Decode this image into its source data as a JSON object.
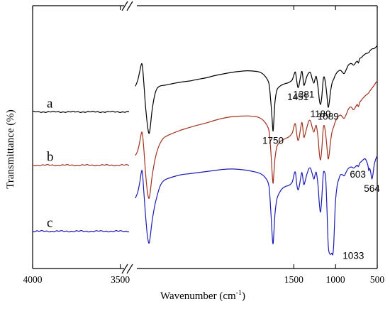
{
  "chart_data": {
    "type": "line",
    "title": "",
    "xlabel": "Wavenumber (cm",
    "xlabel_sup": "-1",
    "xlabel_end": ")",
    "ylabel": "Transmittance (%)",
    "x_break": true,
    "xlim_left": [
      4000,
      3450
    ],
    "xlim_right": [
      3450,
      500
    ],
    "ticks": [
      "4000",
      "3500",
      "1500",
      "1000",
      "500"
    ],
    "tick_values": [
      4000,
      3500,
      1500,
      1000,
      500
    ],
    "grid": false,
    "y_units": "arbitrary (offset curves)",
    "series": [
      {
        "name": "a",
        "color": "#000000",
        "left_level": 0.735,
        "points": [
          [
            3400,
            0.855
          ],
          [
            3370,
            0.885
          ],
          [
            3345,
            0.93
          ],
          [
            3320,
            0.96
          ],
          [
            3300,
            0.88
          ],
          [
            3280,
            0.77
          ],
          [
            3260,
            0.69
          ],
          [
            3240,
            0.636
          ],
          [
            3225,
            0.652
          ],
          [
            3200,
            0.74
          ],
          [
            3170,
            0.81
          ],
          [
            3140,
            0.845
          ],
          [
            3100,
            0.857
          ],
          [
            3050,
            0.86
          ],
          [
            2950,
            0.868
          ],
          [
            2850,
            0.875
          ],
          [
            2750,
            0.88
          ],
          [
            2650,
            0.888
          ],
          [
            2550,
            0.895
          ],
          [
            2450,
            0.905
          ],
          [
            2350,
            0.913
          ],
          [
            2250,
            0.92
          ],
          [
            2150,
            0.925
          ],
          [
            2050,
            0.928
          ],
          [
            1950,
            0.925
          ],
          [
            1900,
            0.92
          ],
          [
            1850,
            0.905
          ],
          [
            1800,
            0.87
          ],
          [
            1778,
            0.79
          ],
          [
            1760,
            0.7
          ],
          [
            1750,
            0.645
          ],
          [
            1740,
            0.69
          ],
          [
            1725,
            0.785
          ],
          [
            1700,
            0.84
          ],
          [
            1650,
            0.86
          ],
          [
            1600,
            0.868
          ],
          [
            1560,
            0.873
          ],
          [
            1520,
            0.885
          ],
          [
            1495,
            0.913
          ],
          [
            1480,
            0.92
          ],
          [
            1465,
            0.88
          ],
          [
            1451,
            0.85
          ],
          [
            1438,
            0.86
          ],
          [
            1420,
            0.9
          ],
          [
            1405,
            0.925
          ],
          [
            1395,
            0.91
          ],
          [
            1381,
            0.862
          ],
          [
            1368,
            0.868
          ],
          [
            1345,
            0.9
          ],
          [
            1320,
            0.918
          ],
          [
            1300,
            0.918
          ],
          [
            1280,
            0.89
          ],
          [
            1260,
            0.87
          ],
          [
            1245,
            0.89
          ],
          [
            1230,
            0.9
          ],
          [
            1210,
            0.85
          ],
          [
            1195,
            0.795
          ],
          [
            1180,
            0.77
          ],
          [
            1165,
            0.805
          ],
          [
            1148,
            0.885
          ],
          [
            1135,
            0.898
          ],
          [
            1120,
            0.868
          ],
          [
            1105,
            0.82
          ],
          [
            1089,
            0.758
          ],
          [
            1075,
            0.78
          ],
          [
            1060,
            0.83
          ],
          [
            1040,
            0.873
          ],
          [
            1020,
            0.89
          ],
          [
            1000,
            0.91
          ],
          [
            970,
            0.925
          ],
          [
            940,
            0.93
          ],
          [
            915,
            0.92
          ],
          [
            895,
            0.915
          ],
          [
            870,
            0.935
          ],
          [
            845,
            0.955
          ],
          [
            820,
            0.962
          ],
          [
            800,
            0.96
          ],
          [
            790,
            0.955
          ],
          [
            775,
            0.957
          ],
          [
            755,
            0.968
          ],
          [
            740,
            0.973
          ],
          [
            725,
            0.965
          ],
          [
            710,
            0.985
          ],
          [
            690,
            0.99
          ],
          [
            670,
            0.998
          ],
          [
            640,
            1.008
          ],
          [
            620,
            1.01
          ],
          [
            600,
            1.013
          ],
          [
            590,
            1.02
          ],
          [
            565,
            1.03
          ],
          [
            540,
            1.032
          ],
          [
            520,
            1.037
          ],
          [
            500,
            1.047
          ]
        ],
        "labels": [
          {
            "text": "1750",
            "x": 1750,
            "y": 0.645,
            "anchor": "below"
          },
          {
            "text": "1451",
            "x": 1451,
            "y": 0.85,
            "anchor": "below"
          },
          {
            "text": "1381",
            "x": 1381,
            "y": 0.862,
            "anchor": "below"
          },
          {
            "text": "1180",
            "x": 1180,
            "y": 0.77,
            "anchor": "below"
          },
          {
            "text": "1089",
            "x": 1089,
            "y": 0.758,
            "anchor": "below"
          }
        ]
      },
      {
        "name": "b",
        "color": "#a0321e",
        "left_level": 0.485,
        "points": [
          [
            3400,
            0.53
          ],
          [
            3370,
            0.555
          ],
          [
            3345,
            0.6
          ],
          [
            3320,
            0.64
          ],
          [
            3300,
            0.57
          ],
          [
            3280,
            0.46
          ],
          [
            3260,
            0.375
          ],
          [
            3240,
            0.33
          ],
          [
            3225,
            0.35
          ],
          [
            3200,
            0.43
          ],
          [
            3170,
            0.5
          ],
          [
            3140,
            0.55
          ],
          [
            3100,
            0.59
          ],
          [
            3050,
            0.616
          ],
          [
            2950,
            0.635
          ],
          [
            2850,
            0.65
          ],
          [
            2750,
            0.662
          ],
          [
            2650,
            0.673
          ],
          [
            2550,
            0.683
          ],
          [
            2450,
            0.695
          ],
          [
            2350,
            0.705
          ],
          [
            2250,
            0.712
          ],
          [
            2150,
            0.715
          ],
          [
            2050,
            0.716
          ],
          [
            1950,
            0.712
          ],
          [
            1900,
            0.705
          ],
          [
            1850,
            0.688
          ],
          [
            1800,
            0.65
          ],
          [
            1778,
            0.56
          ],
          [
            1760,
            0.45
          ],
          [
            1750,
            0.4
          ],
          [
            1740,
            0.44
          ],
          [
            1725,
            0.52
          ],
          [
            1700,
            0.575
          ],
          [
            1650,
            0.6
          ],
          [
            1600,
            0.61
          ],
          [
            1560,
            0.618
          ],
          [
            1520,
            0.635
          ],
          [
            1495,
            0.672
          ],
          [
            1480,
            0.677
          ],
          [
            1465,
            0.63
          ],
          [
            1451,
            0.602
          ],
          [
            1438,
            0.612
          ],
          [
            1420,
            0.655
          ],
          [
            1405,
            0.685
          ],
          [
            1395,
            0.67
          ],
          [
            1381,
            0.618
          ],
          [
            1368,
            0.625
          ],
          [
            1345,
            0.66
          ],
          [
            1320,
            0.692
          ],
          [
            1300,
            0.692
          ],
          [
            1280,
            0.662
          ],
          [
            1260,
            0.64
          ],
          [
            1245,
            0.66
          ],
          [
            1230,
            0.67
          ],
          [
            1210,
            0.615
          ],
          [
            1195,
            0.545
          ],
          [
            1180,
            0.51
          ],
          [
            1165,
            0.56
          ],
          [
            1148,
            0.655
          ],
          [
            1135,
            0.67
          ],
          [
            1120,
            0.635
          ],
          [
            1105,
            0.58
          ],
          [
            1089,
            0.515
          ],
          [
            1075,
            0.54
          ],
          [
            1060,
            0.595
          ],
          [
            1040,
            0.645
          ],
          [
            1020,
            0.667
          ],
          [
            1000,
            0.692
          ],
          [
            970,
            0.712
          ],
          [
            940,
            0.72
          ],
          [
            915,
            0.71
          ],
          [
            895,
            0.705
          ],
          [
            870,
            0.725
          ],
          [
            845,
            0.748
          ],
          [
            820,
            0.758
          ],
          [
            800,
            0.752
          ],
          [
            790,
            0.745
          ],
          [
            775,
            0.748
          ],
          [
            755,
            0.762
          ],
          [
            740,
            0.77
          ],
          [
            725,
            0.76
          ],
          [
            710,
            0.78
          ],
          [
            690,
            0.79
          ],
          [
            670,
            0.8
          ],
          [
            640,
            0.812
          ],
          [
            620,
            0.818
          ],
          [
            600,
            0.825
          ],
          [
            590,
            0.832
          ],
          [
            565,
            0.845
          ],
          [
            540,
            0.858
          ],
          [
            520,
            0.87
          ],
          [
            500,
            0.88
          ]
        ],
        "labels": []
      },
      {
        "name": "c",
        "color": "#1c1cb4",
        "left_level": 0.175,
        "points": [
          [
            3400,
            0.33
          ],
          [
            3370,
            0.36
          ],
          [
            3345,
            0.41
          ],
          [
            3320,
            0.46
          ],
          [
            3300,
            0.37
          ],
          [
            3280,
            0.26
          ],
          [
            3260,
            0.17
          ],
          [
            3240,
            0.12
          ],
          [
            3225,
            0.14
          ],
          [
            3200,
            0.22
          ],
          [
            3170,
            0.29
          ],
          [
            3140,
            0.34
          ],
          [
            3100,
            0.39
          ],
          [
            3050,
            0.415
          ],
          [
            2950,
            0.43
          ],
          [
            2850,
            0.44
          ],
          [
            2750,
            0.445
          ],
          [
            2650,
            0.45
          ],
          [
            2550,
            0.455
          ],
          [
            2450,
            0.46
          ],
          [
            2350,
            0.465
          ],
          [
            2250,
            0.467
          ],
          [
            2150,
            0.465
          ],
          [
            2050,
            0.46
          ],
          [
            1950,
            0.452
          ],
          [
            1900,
            0.445
          ],
          [
            1850,
            0.43
          ],
          [
            1800,
            0.39
          ],
          [
            1778,
            0.28
          ],
          [
            1760,
            0.16
          ],
          [
            1750,
            0.115
          ],
          [
            1740,
            0.16
          ],
          [
            1725,
            0.26
          ],
          [
            1700,
            0.33
          ],
          [
            1650,
            0.37
          ],
          [
            1600,
            0.385
          ],
          [
            1560,
            0.39
          ],
          [
            1520,
            0.405
          ],
          [
            1495,
            0.445
          ],
          [
            1480,
            0.45
          ],
          [
            1465,
            0.395
          ],
          [
            1451,
            0.37
          ],
          [
            1438,
            0.38
          ],
          [
            1420,
            0.42
          ],
          [
            1405,
            0.45
          ],
          [
            1395,
            0.435
          ],
          [
            1381,
            0.395
          ],
          [
            1368,
            0.405
          ],
          [
            1345,
            0.44
          ],
          [
            1320,
            0.468
          ],
          [
            1300,
            0.47
          ],
          [
            1280,
            0.445
          ],
          [
            1260,
            0.42
          ],
          [
            1245,
            0.44
          ],
          [
            1230,
            0.45
          ],
          [
            1210,
            0.39
          ],
          [
            1195,
            0.31
          ],
          [
            1180,
            0.265
          ],
          [
            1165,
            0.33
          ],
          [
            1148,
            0.44
          ],
          [
            1135,
            0.455
          ],
          [
            1120,
            0.43
          ],
          [
            1110,
            0.36
          ],
          [
            1100,
            0.25
          ],
          [
            1090,
            0.13
          ],
          [
            1080,
            0.08
          ],
          [
            1060,
            0.066
          ],
          [
            1045,
            0.072
          ],
          [
            1033,
            0.065
          ],
          [
            1022,
            0.11
          ],
          [
            1010,
            0.23
          ],
          [
            1000,
            0.32
          ],
          [
            980,
            0.39
          ],
          [
            960,
            0.42
          ],
          [
            940,
            0.44
          ],
          [
            915,
            0.44
          ],
          [
            895,
            0.435
          ],
          [
            870,
            0.455
          ],
          [
            845,
            0.47
          ],
          [
            820,
            0.476
          ],
          [
            800,
            0.475
          ],
          [
            790,
            0.472
          ],
          [
            775,
            0.473
          ],
          [
            755,
            0.48
          ],
          [
            740,
            0.485
          ],
          [
            725,
            0.478
          ],
          [
            710,
            0.495
          ],
          [
            690,
            0.502
          ],
          [
            670,
            0.51
          ],
          [
            650,
            0.515
          ],
          [
            640,
            0.513
          ],
          [
            620,
            0.495
          ],
          [
            610,
            0.48
          ],
          [
            603,
            0.46
          ],
          [
            596,
            0.465
          ],
          [
            590,
            0.47
          ],
          [
            580,
            0.455
          ],
          [
            570,
            0.43
          ],
          [
            564,
            0.42
          ],
          [
            556,
            0.43
          ],
          [
            545,
            0.46
          ],
          [
            535,
            0.49
          ],
          [
            520,
            0.51
          ],
          [
            500,
            0.53
          ]
        ],
        "labels": [
          {
            "text": "1033",
            "x": 1033,
            "y": 0.065,
            "anchor": "right"
          },
          {
            "text": "603",
            "x": 603,
            "y": 0.46,
            "anchor": "left-above"
          },
          {
            "text": "564",
            "x": 564,
            "y": 0.42,
            "anchor": "below"
          }
        ]
      }
    ]
  }
}
